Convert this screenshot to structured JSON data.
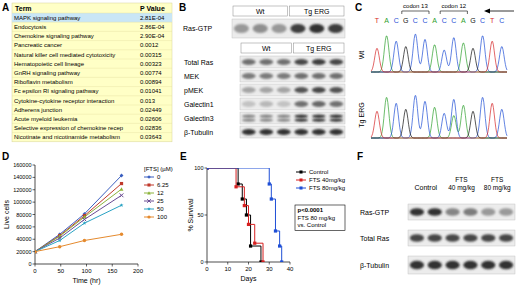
{
  "panel_labels": [
    "A",
    "B",
    "C",
    "D",
    "E",
    "F"
  ],
  "table": {
    "header": [
      "Term",
      "P Value"
    ],
    "rows": [
      [
        "MAPK signaling pathway",
        "2.81E-04"
      ],
      [
        "Endocytosis",
        "2.86E-04"
      ],
      [
        "Chemokine signaling pathway",
        "2.90E-04"
      ],
      [
        "Pancreatic cancer",
        "0.0012"
      ],
      [
        "Natural killer cell mediated cytotoxicity",
        "0.00315"
      ],
      [
        "Hematopoietic cell lineage",
        "0.00323"
      ],
      [
        "GnRH signaling pathway",
        "0.00774"
      ],
      [
        "Riboflavin metabolism",
        "0.00894"
      ],
      [
        "Fc epsilon RI signaling pathway",
        "0.01041"
      ],
      [
        "Cytokine-cytokine receptor interaction",
        "0.013"
      ],
      [
        "Adherens junction",
        "0.02449"
      ],
      [
        "Acute myeloid leukemia",
        "0.02606"
      ],
      [
        "Selective expression of chemokine recep",
        "0.02836"
      ],
      [
        "Nicotinate and nicotinamide metabolism",
        "0.03643"
      ]
    ]
  },
  "blot_b": {
    "top": {
      "groups": [
        "Wt",
        "Tg ERG"
      ],
      "rows": [
        "Ras-GTP"
      ]
    },
    "bottom": {
      "groups": [
        "Wt",
        "Tg ERG"
      ],
      "rows": [
        "Total Ras",
        "MEK",
        "pMEK",
        "Galectin1",
        "Galectin3",
        "β-Tubulin"
      ]
    }
  },
  "sequence": {
    "bases": [
      "T",
      "A",
      "C",
      "G",
      "C",
      "C",
      "A",
      "C",
      "C",
      "A",
      "G",
      "C",
      "T",
      "C"
    ],
    "codons": [
      "codon 13",
      "codon 12"
    ],
    "samples": [
      "Wt",
      "Tg ERG"
    ]
  },
  "blot_f": {
    "groups": [
      "Control",
      "FTS 40 mg/kg",
      "FTS 80 mg/kg"
    ],
    "rows": [
      "Ras-GTP",
      "Total Ras",
      "β-Tubulin"
    ]
  },
  "chart_data": [
    {
      "type": "line",
      "x_label": "Time (hr)",
      "y_label": "Live cells",
      "legend_title": "[FTS] (µM)",
      "legend": "right",
      "grid": false,
      "x": [
        0,
        48,
        96,
        168
      ],
      "xlim": [
        0,
        200
      ],
      "xticks": [
        0,
        50,
        100,
        150,
        200
      ],
      "ylim": [
        0,
        160000
      ],
      "yticks": [
        0,
        20000,
        40000,
        60000,
        80000,
        100000,
        120000,
        140000,
        160000
      ],
      "series": [
        {
          "name": "0",
          "color": "#3b5fc0",
          "marker": "diamond",
          "values": [
            20000,
            48000,
            81000,
            143000
          ]
        },
        {
          "name": "6.25",
          "color": "#c0392b",
          "marker": "square",
          "values": [
            20000,
            46000,
            78000,
            130000
          ]
        },
        {
          "name": "12",
          "color": "#8cb33a",
          "marker": "triangle",
          "values": [
            20000,
            45000,
            76000,
            121000
          ]
        },
        {
          "name": "25",
          "color": "#6a4c93",
          "marker": "x",
          "values": [
            20000,
            42000,
            72000,
            111000
          ]
        },
        {
          "name": "50",
          "color": "#2aa3c4",
          "marker": "star",
          "values": [
            20000,
            38000,
            66000,
            95000
          ]
        },
        {
          "name": "100",
          "color": "#e58a2e",
          "marker": "circle",
          "values": [
            20000,
            28000,
            38000,
            48000
          ]
        }
      ]
    },
    {
      "type": "line",
      "line_style": "step",
      "x_label": "Days",
      "y_label": "% Survival",
      "legend": "right",
      "grid": false,
      "xlim": [
        0,
        40
      ],
      "xticks": [
        0,
        10,
        20,
        30,
        40
      ],
      "ylim": [
        0,
        100
      ],
      "yticks": [
        0,
        50,
        100
      ],
      "annotation": [
        "p<0.0001",
        "FTS 80 mg/kg",
        "vs. Control"
      ],
      "series": [
        {
          "name": "Control",
          "color": "#000000",
          "marker": "square",
          "x": [
            0,
            15,
            17,
            19,
            21,
            26
          ],
          "values": [
            100,
            83,
            67,
            50,
            17,
            0
          ]
        },
        {
          "name": "FTS 40mg/kg",
          "color": "#d62020",
          "marker": "square",
          "x": [
            0,
            14,
            18,
            20,
            23,
            27
          ],
          "values": [
            100,
            80,
            60,
            40,
            20,
            0
          ]
        },
        {
          "name": "FTS 80mg/kg",
          "color": "#1f4fd6",
          "marker": "square",
          "x": [
            0,
            30,
            31,
            33,
            35,
            36
          ],
          "values": [
            100,
            83,
            67,
            33,
            17,
            0
          ]
        }
      ]
    }
  ]
}
